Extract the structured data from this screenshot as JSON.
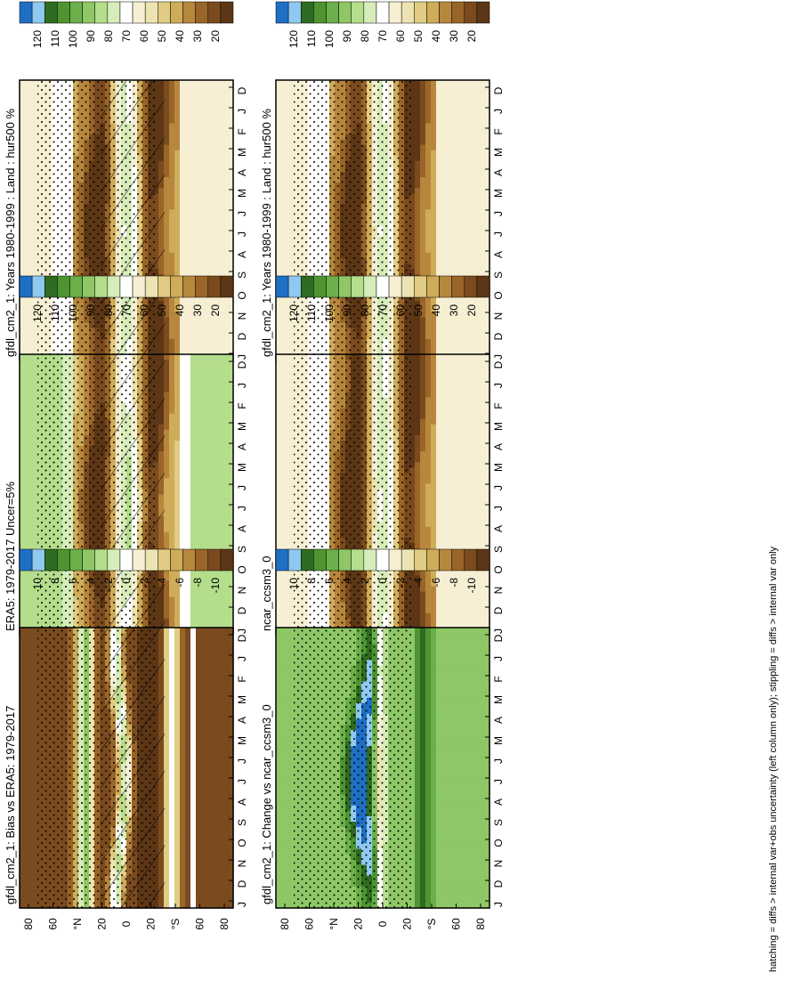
{
  "footer": "hatching = diffs > internal var+obs uncertainty (left column only); stippling = diffs > internal var only",
  "months": [
    "D",
    "J",
    "F",
    "M",
    "A",
    "M",
    "J",
    "J",
    "A",
    "S",
    "O",
    "N",
    "D",
    "J"
  ],
  "lat_labels": [
    "80",
    "60",
    "°N",
    "20",
    "0",
    "20",
    "°S",
    "60",
    "80"
  ],
  "colorbars": {
    "absolute": {
      "labels": [
        "120",
        "110",
        "100",
        "90",
        "80",
        "70",
        "60",
        "50",
        "40",
        "30",
        "20"
      ],
      "colors": [
        "#1f6fc4",
        "#8ec9f2",
        "#2f6b20",
        "#4e9531",
        "#6bb04a",
        "#8ec766",
        "#b4dd8c",
        "#d6edba",
        "#ffffff",
        "#f6efd3",
        "#ece3b0",
        "#e0cc82",
        "#cfac5a",
        "#b7873d",
        "#9a6528",
        "#7a4b1e",
        "#5c3615"
      ]
    },
    "difference": {
      "labels": [
        "10",
        "8",
        "6",
        "4",
        "2",
        "0",
        "-2",
        "-4",
        "-6",
        "-8",
        "-10"
      ],
      "colors": [
        "#1f6fc4",
        "#8ec9f2",
        "#2f6b20",
        "#4e9531",
        "#6bb04a",
        "#8ec766",
        "#b4dd8c",
        "#d6edba",
        "#ffffff",
        "#f6efd3",
        "#ece3b0",
        "#e0cc82",
        "#cfac5a",
        "#b7873d",
        "#9a6528",
        "#7a4b1e",
        "#5c3615"
      ]
    }
  },
  "chart_data": [
    {
      "type": "heatmap",
      "panel": "left-top",
      "title": "gfdl_cm2_1: Years 1980-1999 : Land : hur500 %",
      "colorbar": "absolute",
      "field": "model",
      "hatching": true,
      "stippling": true
    },
    {
      "type": "heatmap",
      "panel": "left-middle",
      "title": "ERA5: 1979-2017 Uncer=5%",
      "colorbar": "absolute",
      "field": "obs",
      "hatching": true,
      "stippling": true
    },
    {
      "type": "heatmap",
      "panel": "left-bottom",
      "title": "gfdl_cm2_1: Bias vs ERA5: 1979-2017",
      "colorbar": "difference",
      "field": "bias",
      "hatching": true,
      "stippling": true
    },
    {
      "type": "heatmap",
      "panel": "right-top",
      "title": "gfdl_cm2_1: Years 1980-1999 : Land : hur500 %",
      "colorbar": "absolute",
      "field": "model",
      "hatching": false,
      "stippling": true
    },
    {
      "type": "heatmap",
      "panel": "right-middle",
      "title": "ncar_ccsm3_0",
      "colorbar": "absolute",
      "field": "model2",
      "hatching": false,
      "stippling": true
    },
    {
      "type": "heatmap",
      "panel": "right-bottom",
      "title": "gfdl_cm2_1: Change vs ncar_ccsm3_0",
      "colorbar": "difference",
      "field": "change",
      "hatching": false,
      "stippling": true
    }
  ]
}
